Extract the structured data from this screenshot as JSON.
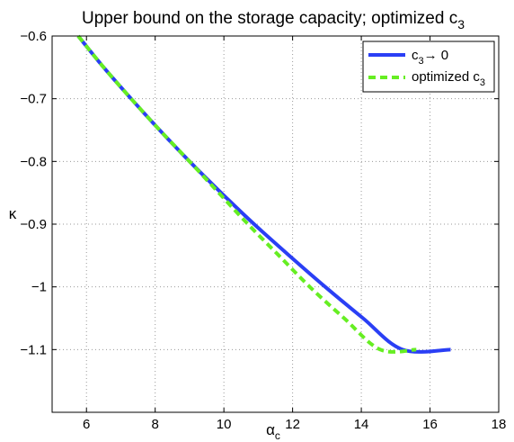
{
  "chart_data": {
    "type": "line",
    "title": "Upper bound on the storage capacity; optimized c",
    "title_sub": "3",
    "xlabel": "α",
    "xlabel_sub": "c",
    "ylabel": "κ",
    "xlim": [
      5,
      18
    ],
    "ylim": [
      -1.2,
      -0.6
    ],
    "xticks": [
      6,
      8,
      10,
      12,
      14,
      16,
      18
    ],
    "xtick_labels": [
      "6",
      "8",
      "10",
      "12",
      "14",
      "16",
      "18"
    ],
    "yticks": [
      -0.6,
      -0.7,
      -0.8,
      -0.9,
      -1.0,
      -1.1
    ],
    "ytick_labels": [
      "−0.6",
      "−0.7",
      "−0.8",
      "−0.9",
      "−1",
      "−1.1"
    ],
    "grid": true,
    "legend_position": "top-right",
    "series": [
      {
        "name": "c",
        "name_sub": "3",
        "name_suffix": "→ 0",
        "color": "#2a3ff5",
        "style": "solid",
        "x": [
          5.76,
          6.5,
          7.3,
          8.13,
          9.0,
          9.92,
          10.88,
          11.9,
          12.95,
          14.05,
          15.2,
          16.6
        ],
        "y": [
          -0.6,
          -0.65,
          -0.7,
          -0.75,
          -0.8,
          -0.85,
          -0.9,
          -0.95,
          -1.0,
          -1.05,
          -1.1,
          -1.1
        ]
      },
      {
        "name": "optimized c",
        "name_sub": "3",
        "name_suffix": "",
        "color": "#66ee22",
        "style": "dashed",
        "x": [
          5.76,
          6.5,
          7.3,
          8.13,
          9.0,
          9.85,
          10.7,
          11.6,
          12.5,
          13.5,
          14.55,
          15.6
        ],
        "y": [
          -0.6,
          -0.65,
          -0.7,
          -0.75,
          -0.8,
          -0.85,
          -0.9,
          -0.95,
          -1.0,
          -1.05,
          -1.1,
          -1.1
        ]
      }
    ]
  }
}
